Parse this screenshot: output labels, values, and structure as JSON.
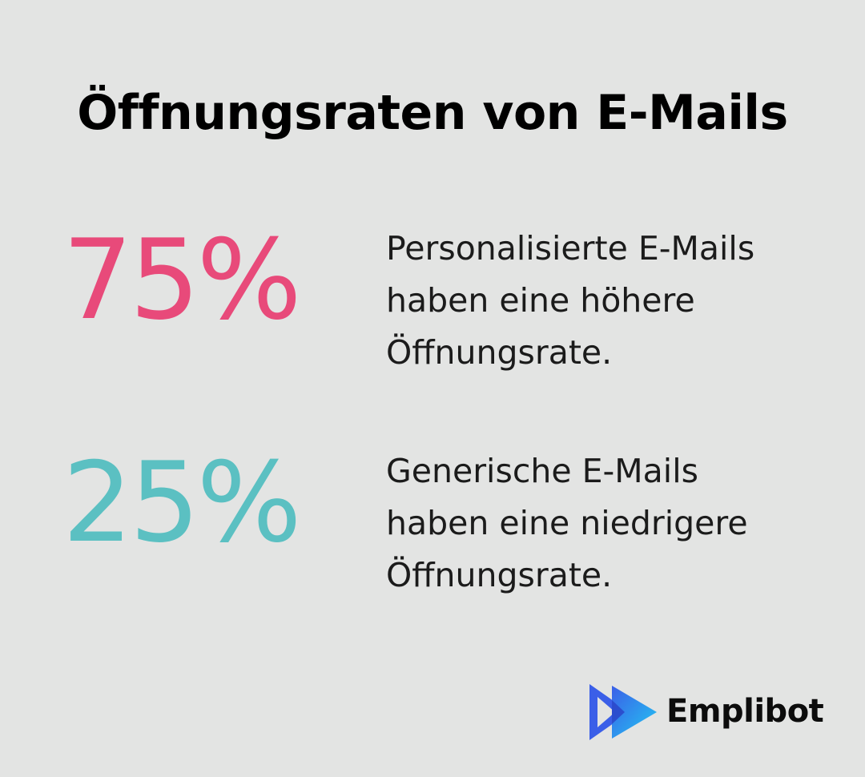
{
  "title": "Öffnungsraten von E-Mails",
  "stats": [
    {
      "value": "75%",
      "color": "#e84a7a",
      "description_lines": [
        "Personalisierte E-Mails",
        "haben eine höhere",
        "Öffnungsrate."
      ]
    },
    {
      "value": "25%",
      "color": "#5bc0c2",
      "description_lines": [
        "Generische E-Mails",
        "haben eine niedrigere",
        "Öffnungsrate."
      ]
    }
  ],
  "brand": {
    "name": "Emplibot",
    "icon": "play-arrow-logo-icon",
    "colors": [
      "#3b5fe8",
      "#22c8f2"
    ]
  }
}
